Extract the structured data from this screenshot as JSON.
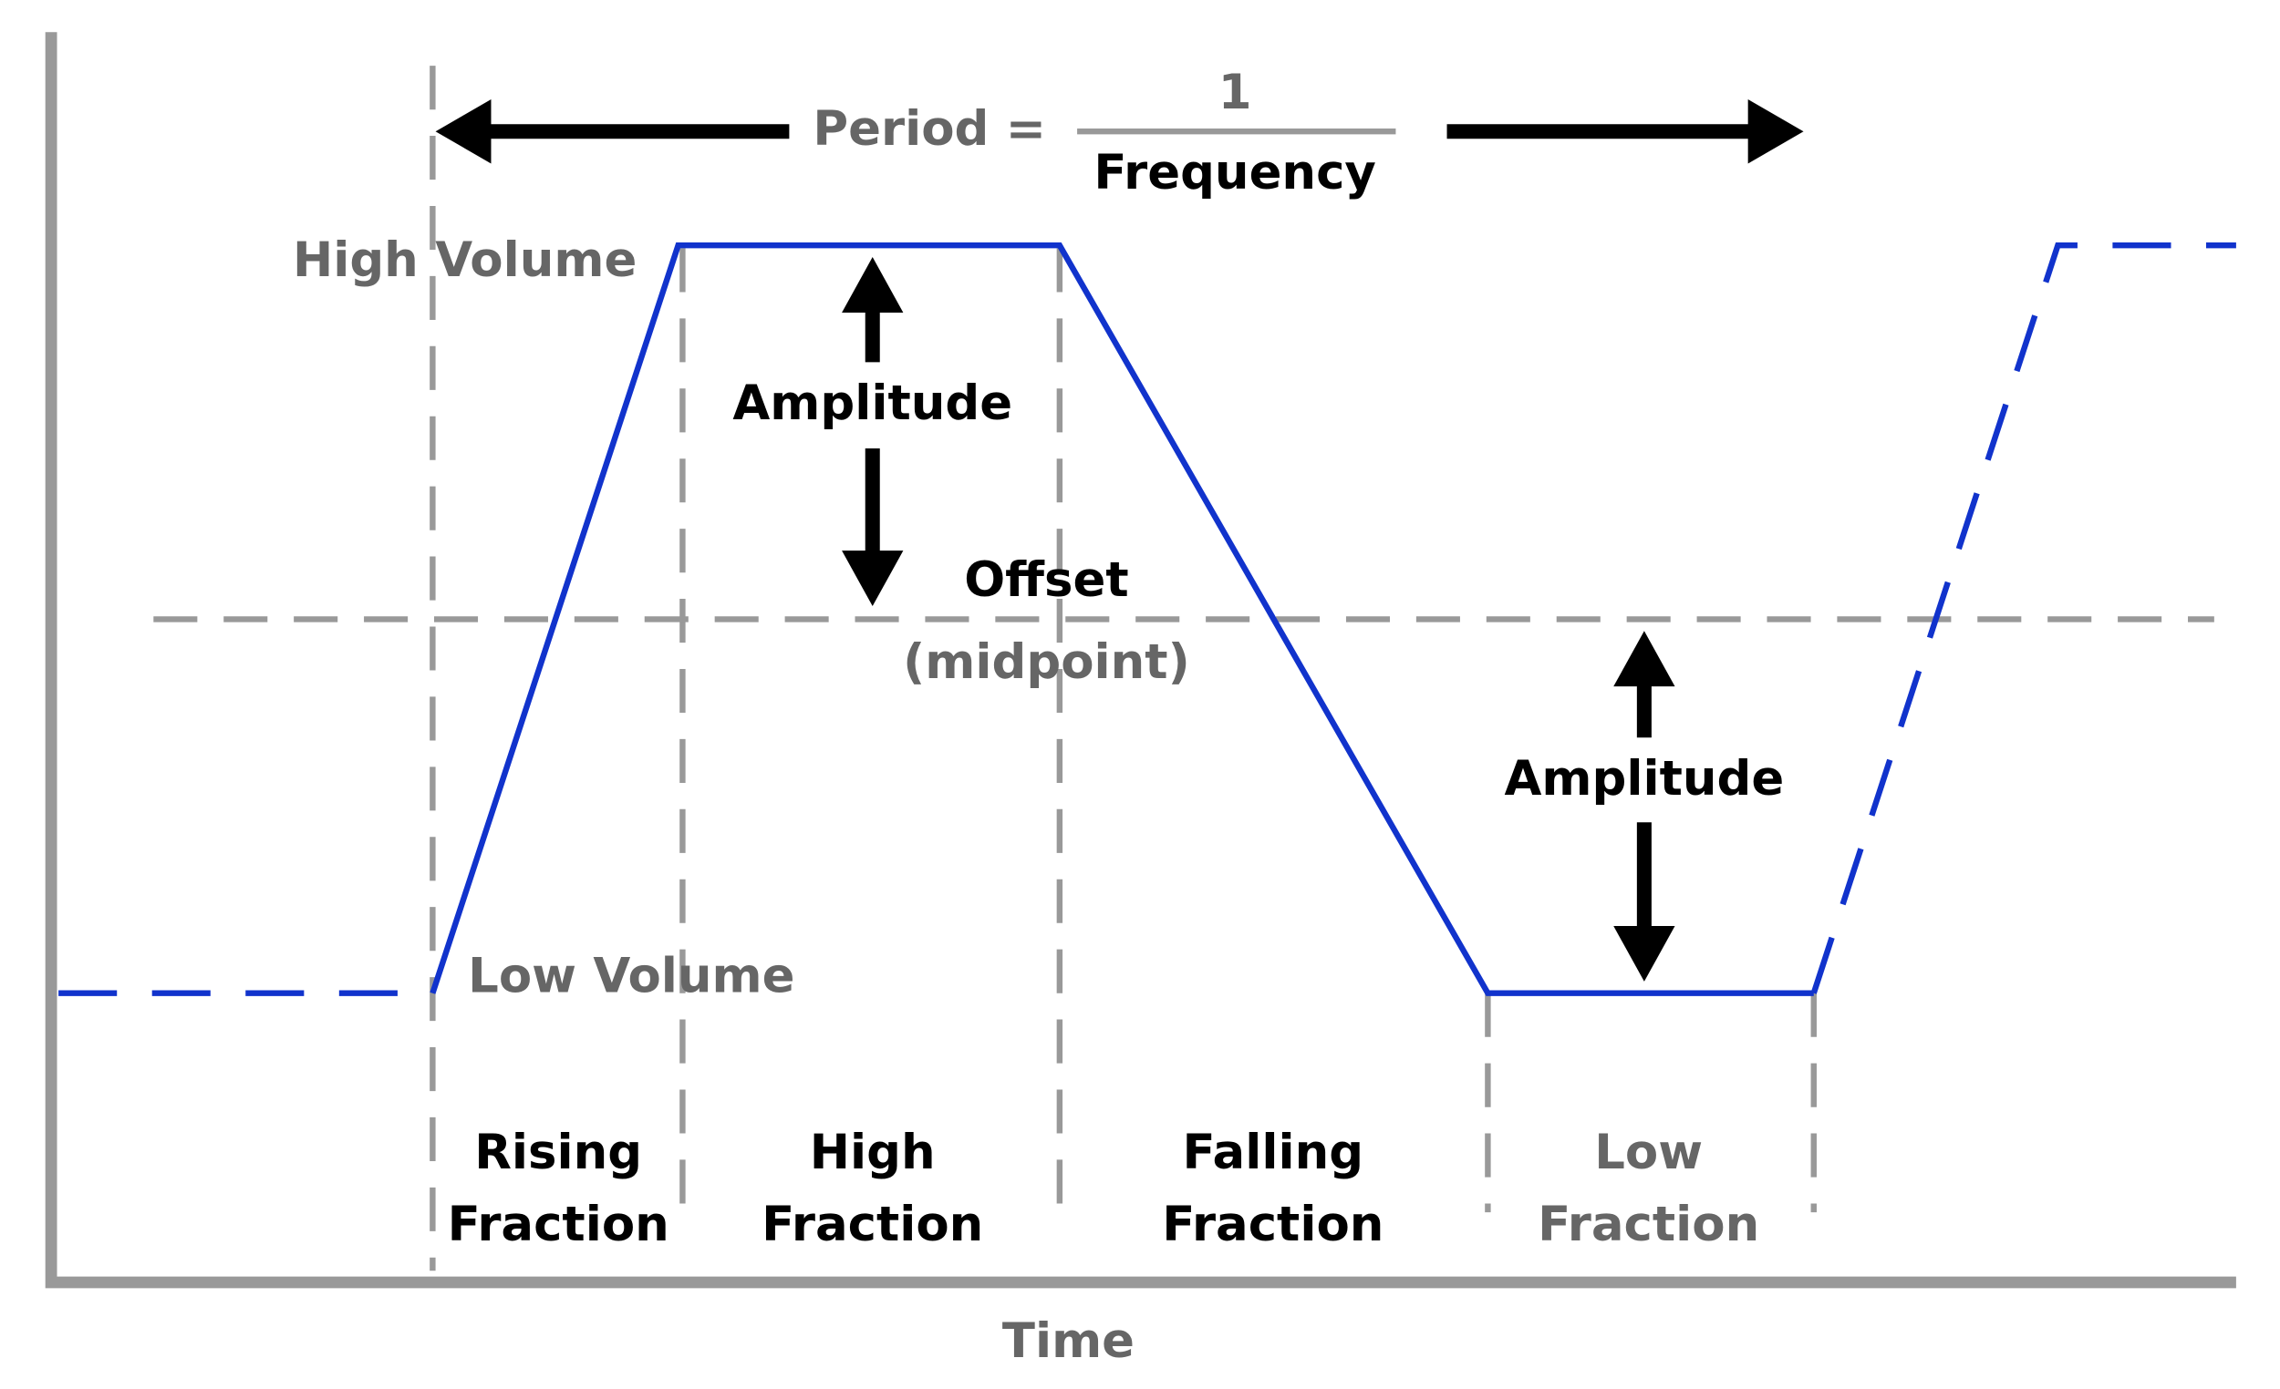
{
  "period": {
    "label": "Period =",
    "numerator": "1",
    "denominator": "Frequency"
  },
  "levels": {
    "high": "High Volume",
    "low": "Low Volume"
  },
  "amplitude_labels": [
    "Amplitude",
    "Amplitude"
  ],
  "offset": {
    "label": "Offset",
    "note": "(midpoint)"
  },
  "phases": [
    {
      "line1": "Rising",
      "line2": "Fraction"
    },
    {
      "line1": "High",
      "line2": "Fraction"
    },
    {
      "line1": "Falling",
      "line2": "Fraction"
    },
    {
      "line1": "Low",
      "line2": "Fraction"
    }
  ],
  "x_axis_label": "Time"
}
